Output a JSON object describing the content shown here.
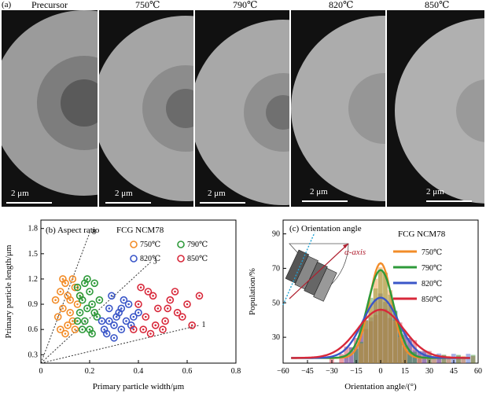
{
  "part_a": {
    "label": "(a)",
    "scale_text": "2 μm",
    "panels": [
      {
        "label": "Precursor"
      },
      {
        "label": "750℃"
      },
      {
        "label": "790℃"
      },
      {
        "label": "820℃"
      },
      {
        "label": "850℃"
      }
    ]
  },
  "colors": {
    "orange": "#f28c28",
    "green": "#2e9a3a",
    "blue": "#3a56c8",
    "red": "#d8283a"
  },
  "chart_data": [
    {
      "type": "scatter",
      "panel_label": "(b) Aspect ratio",
      "title": "FCG NCM78",
      "xlabel": "Primary particle width/μm",
      "ylabel": "Primary particle length/μm",
      "xlim": [
        0,
        0.8
      ],
      "ylim": [
        0.2,
        1.9
      ],
      "xticks": [
        "0",
        "0.2",
        "0.4",
        "0.6",
        "0.8"
      ],
      "yticks": [
        "0.3",
        "0.6",
        "0.9",
        "1.2",
        "1.5",
        "1.8"
      ],
      "ytick_values": [
        0.3,
        0.6,
        0.9,
        1.2,
        1.5,
        1.8
      ],
      "xtick_values": [
        0,
        0.2,
        0.4,
        0.6,
        0.8
      ],
      "reference_lines": [
        {
          "label": "8",
          "slope": 8
        },
        {
          "label": "3",
          "slope": 3
        },
        {
          "label": "1",
          "slope": 1
        }
      ],
      "series": [
        {
          "name": "750℃",
          "color": "orange",
          "points": [
            [
              0.08,
              1.05
            ],
            [
              0.1,
              1.15
            ],
            [
              0.12,
              0.95
            ],
            [
              0.09,
              0.85
            ],
            [
              0.13,
              1.2
            ],
            [
              0.07,
              0.75
            ],
            [
              0.11,
              0.65
            ],
            [
              0.14,
              1.1
            ],
            [
              0.1,
              0.55
            ],
            [
              0.15,
              0.9
            ],
            [
              0.06,
              0.95
            ],
            [
              0.12,
              0.8
            ],
            [
              0.08,
              0.6
            ],
            [
              0.13,
              0.7
            ],
            [
              0.16,
              1.0
            ],
            [
              0.09,
              1.2
            ],
            [
              0.11,
              1.0
            ],
            [
              0.14,
              0.6
            ]
          ]
        },
        {
          "name": "790℃",
          "color": "green",
          "points": [
            [
              0.15,
              1.1
            ],
            [
              0.17,
              0.95
            ],
            [
              0.19,
              1.2
            ],
            [
              0.16,
              0.8
            ],
            [
              0.2,
              1.05
            ],
            [
              0.18,
              0.7
            ],
            [
              0.21,
              0.9
            ],
            [
              0.17,
              0.6
            ],
            [
              0.22,
              1.15
            ],
            [
              0.19,
              0.85
            ],
            [
              0.23,
              0.75
            ],
            [
              0.16,
              1.0
            ],
            [
              0.2,
              0.6
            ],
            [
              0.18,
              1.15
            ],
            [
              0.24,
              0.95
            ],
            [
              0.21,
              0.55
            ],
            [
              0.15,
              0.7
            ],
            [
              0.22,
              0.8
            ]
          ]
        },
        {
          "name": "820℃",
          "color": "blue",
          "points": [
            [
              0.25,
              0.7
            ],
            [
              0.28,
              0.85
            ],
            [
              0.3,
              0.65
            ],
            [
              0.27,
              0.55
            ],
            [
              0.32,
              0.8
            ],
            [
              0.35,
              0.7
            ],
            [
              0.29,
              1.0
            ],
            [
              0.33,
              0.6
            ],
            [
              0.36,
              0.9
            ],
            [
              0.31,
              0.75
            ],
            [
              0.26,
              0.6
            ],
            [
              0.34,
              0.95
            ],
            [
              0.38,
              0.75
            ],
            [
              0.3,
              0.5
            ],
            [
              0.37,
              0.65
            ],
            [
              0.28,
              0.7
            ],
            [
              0.33,
              0.85
            ],
            [
              0.4,
              0.8
            ]
          ]
        },
        {
          "name": "850℃",
          "color": "red",
          "points": [
            [
              0.4,
              0.9
            ],
            [
              0.43,
              0.75
            ],
            [
              0.46,
              1.0
            ],
            [
              0.42,
              0.6
            ],
            [
              0.48,
              0.85
            ],
            [
              0.51,
              0.7
            ],
            [
              0.45,
              0.55
            ],
            [
              0.53,
              0.95
            ],
            [
              0.56,
              0.8
            ],
            [
              0.5,
              0.6
            ],
            [
              0.58,
              0.75
            ],
            [
              0.55,
              1.05
            ],
            [
              0.6,
              0.9
            ],
            [
              0.62,
              0.65
            ],
            [
              0.44,
              1.05
            ],
            [
              0.47,
              0.65
            ],
            [
              0.65,
              1.0
            ],
            [
              0.52,
              0.85
            ],
            [
              0.38,
              0.6
            ],
            [
              0.41,
              1.1
            ]
          ]
        }
      ]
    },
    {
      "type": "histogram",
      "panel_label": "(c) Orientation angle",
      "title": "FCG NCM78",
      "axis_label": "α-axis",
      "xlabel": "Orientation angle/(°)",
      "ylabel": "Population/%",
      "xlim": [
        -60,
        60
      ],
      "ylim": [
        15,
        98
      ],
      "xticks": [
        "−60",
        "−45",
        "−30",
        "−15",
        "0",
        "15",
        "30",
        "45",
        "60"
      ],
      "xtick_values": [
        -60,
        -45,
        -30,
        -15,
        0,
        15,
        30,
        45,
        60
      ],
      "yticks": [
        "30",
        "50",
        "70",
        "90"
      ],
      "ytick_values": [
        30,
        50,
        70,
        90
      ],
      "series": [
        {
          "name": "750℃",
          "color": "orange",
          "peak": 73,
          "sigma": 7
        },
        {
          "name": "790℃",
          "color": "green",
          "peak": 69,
          "sigma": 8
        },
        {
          "name": "820℃",
          "color": "blue",
          "peak": 53,
          "sigma": 11
        },
        {
          "name": "850℃",
          "color": "red",
          "peak": 46,
          "sigma": 14
        }
      ]
    }
  ]
}
